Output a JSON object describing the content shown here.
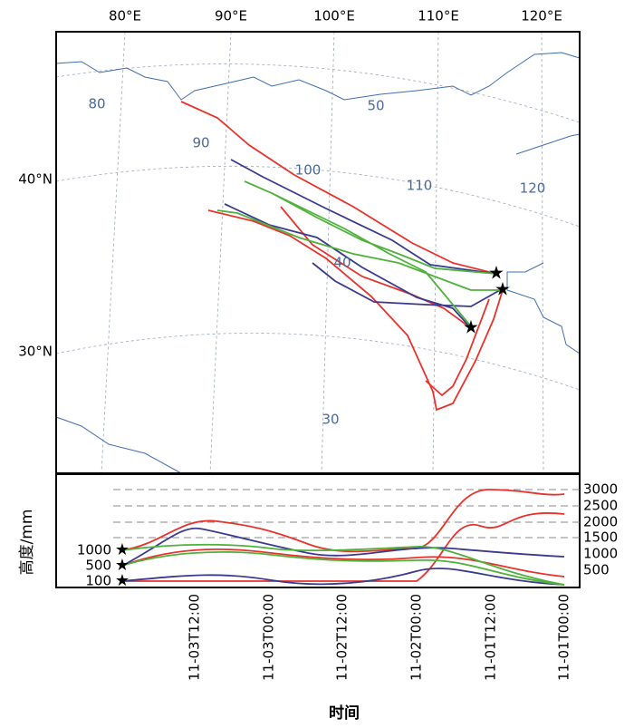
{
  "map": {
    "lon_labels": [
      "80°E",
      "90°E",
      "100°E",
      "110°E",
      "120°E"
    ],
    "lat_labels": [
      "40°N",
      "30°N"
    ],
    "contour_labels": [
      "80",
      "90",
      "100",
      "110",
      "120",
      "50",
      "30",
      "40"
    ]
  },
  "profile": {
    "y_label": "高度/mm",
    "x_label": "时间",
    "left_ticks": [
      "1000",
      "500",
      "100"
    ],
    "right_ticks": [
      "3000",
      "2500",
      "2000",
      "1500",
      "1000",
      "500"
    ],
    "time_ticks": [
      "11-03T12:00",
      "11-03T00:00",
      "11-02T12:00",
      "11-02T00:00",
      "11-01T12:00",
      "11-01T00:00"
    ]
  }
}
